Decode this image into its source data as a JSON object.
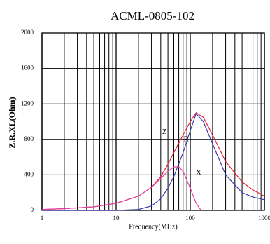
{
  "chart_data": {
    "type": "line",
    "title": "ACML-0805-102",
    "x_label": "Frequency(MHz)",
    "y_label": "Z.R.XL(Ohm)",
    "xscale": "log",
    "xlim": [
      1,
      1000
    ],
    "xticks": [
      1,
      10,
      100,
      1000
    ],
    "ylim": [
      0,
      2000
    ],
    "yticks": [
      0,
      400,
      800,
      1200,
      1600,
      2000
    ],
    "grid": true,
    "series": [
      {
        "name": "Z",
        "color": "#e8203a",
        "x": [
          1,
          2,
          5,
          10,
          20,
          30,
          40,
          50,
          60,
          80,
          100,
          120,
          150,
          200,
          300,
          500,
          700,
          1000
        ],
        "values": [
          10,
          20,
          40,
          80,
          160,
          260,
          380,
          520,
          650,
          850,
          1000,
          1100,
          1050,
          850,
          550,
          320,
          230,
          160
        ]
      },
      {
        "name": "R",
        "color": "#3a3ab0",
        "x": [
          1,
          10,
          20,
          30,
          40,
          50,
          60,
          80,
          100,
          120,
          150,
          200,
          300,
          500,
          700,
          1000
        ],
        "values": [
          0,
          0,
          10,
          50,
          130,
          250,
          380,
          650,
          900,
          1090,
          1000,
          750,
          400,
          200,
          150,
          120
        ]
      },
      {
        "name": "X",
        "color": "#e040a0",
        "x": [
          1,
          2,
          5,
          10,
          20,
          30,
          40,
          50,
          60,
          70,
          80,
          100,
          120,
          140
        ],
        "values": [
          10,
          20,
          40,
          80,
          160,
          260,
          360,
          440,
          490,
          490,
          440,
          250,
          80,
          0
        ]
      }
    ]
  }
}
